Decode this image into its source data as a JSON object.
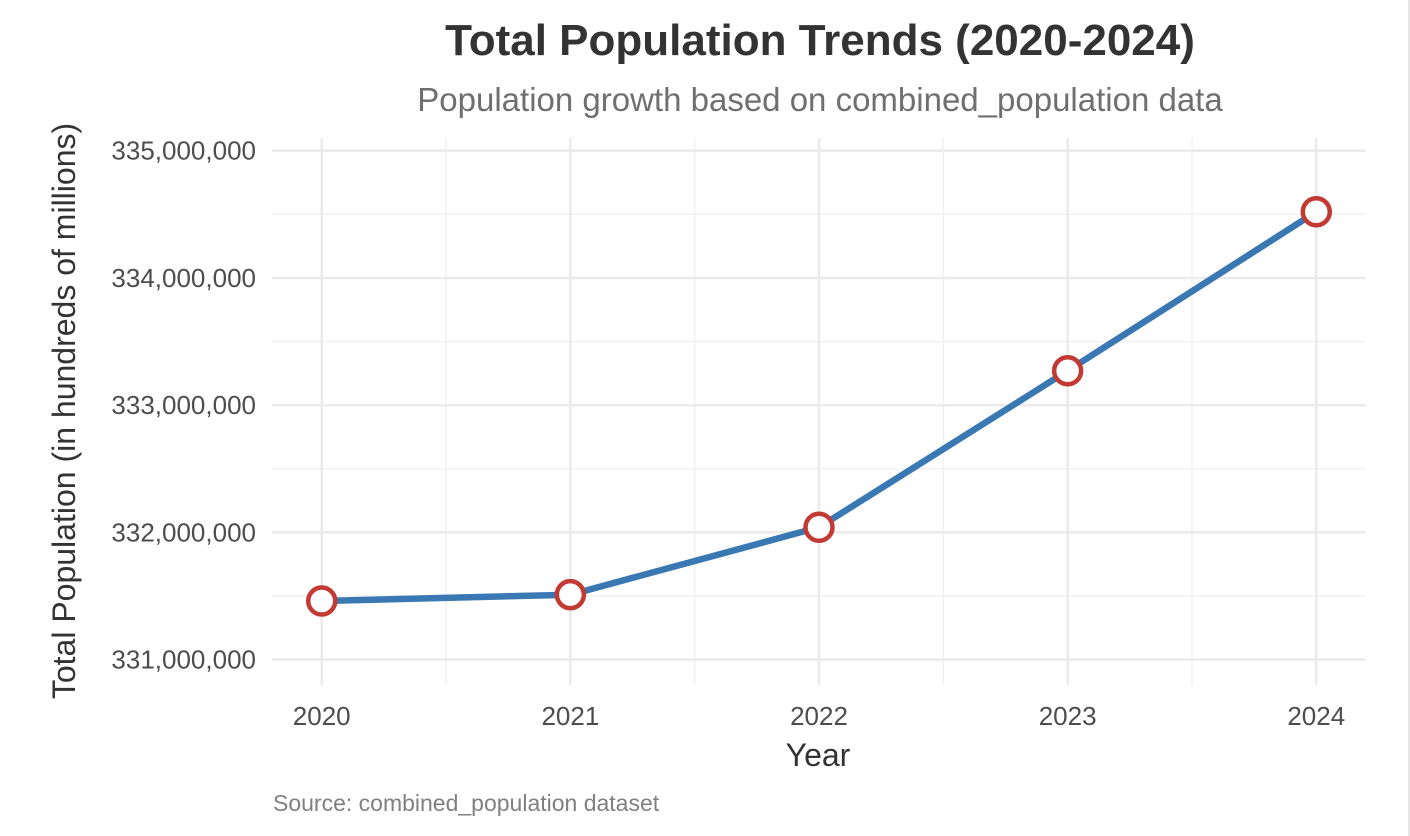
{
  "chart_data": {
    "type": "line",
    "title": "Total Population Trends (2020-2024)",
    "subtitle": "Population growth based on combined_population data",
    "xlabel": "Year",
    "ylabel": "Total Population (in hundreds of millions)",
    "caption": "Source: combined_population dataset",
    "x": [
      2020,
      2021,
      2022,
      2023,
      2024
    ],
    "x_tick_labels": [
      "2020",
      "2021",
      "2022",
      "2023",
      "2024"
    ],
    "xlim": [
      2019.8,
      2024.2
    ],
    "ylim": [
      330800000,
      335100000
    ],
    "y_ticks": [
      331000000,
      332000000,
      333000000,
      334000000,
      335000000
    ],
    "y_tick_labels": [
      "331,000,000",
      "332,000,000",
      "333,000,000",
      "334,000,000",
      "335,000,000"
    ],
    "grid": true,
    "legend": "none",
    "series": [
      {
        "values": [
          331460000,
          331510000,
          332040000,
          333270000,
          334520000
        ],
        "line_color": "#3A78B4",
        "marker_edge_color": "#C33A35",
        "marker_fill_color": "#FFFFFF"
      }
    ]
  }
}
